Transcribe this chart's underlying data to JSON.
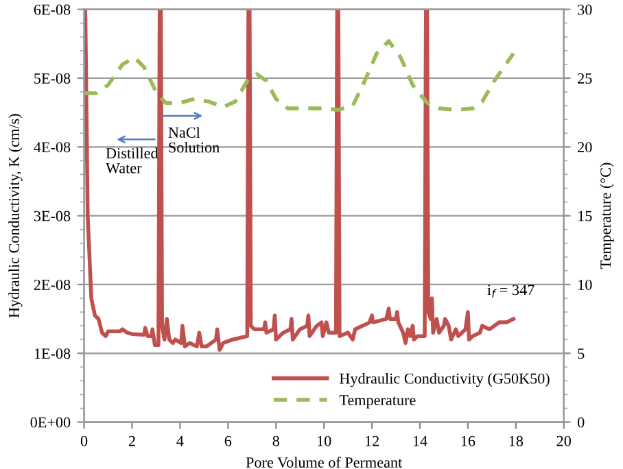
{
  "chart_data": {
    "type": "line",
    "xlabel": "Pore Volume of Permeant",
    "ylabel": "Hydraulic Conductivity, K (cm/s)",
    "y2label": "Temperature (°C)",
    "xlim": [
      0,
      20
    ],
    "xticks": [
      0,
      2,
      4,
      6,
      8,
      10,
      12,
      14,
      16,
      18,
      20
    ],
    "ylim": [
      0,
      6e-08
    ],
    "yticks": [
      {
        "value": 0,
        "label": "0E+00"
      },
      {
        "value": 1e-08,
        "label": "1E-08"
      },
      {
        "value": 2e-08,
        "label": "2E-08"
      },
      {
        "value": 3e-08,
        "label": "3E-08"
      },
      {
        "value": 4e-08,
        "label": "4E-08"
      },
      {
        "value": 5e-08,
        "label": "5E-08"
      },
      {
        "value": 6e-08,
        "label": "6E-08"
      }
    ],
    "y2lim": [
      0,
      30
    ],
    "y2ticks": [
      0,
      5,
      10,
      15,
      20,
      25,
      30
    ],
    "grid": "y",
    "legend": "bottom right",
    "marker": "none",
    "annotations": [
      "Distilled Water",
      "NaCl Solution",
      "i$_{f}$ = 347"
    ],
    "series": [
      {
        "name": "Hydraulic Conductivity (G50K50)",
        "color": "#c0504d",
        "line_style": "solid",
        "x": [
          0,
          0.05,
          0.15,
          0.3,
          0.45,
          0.6,
          0.75,
          0.9,
          1.0,
          1.5,
          1.6,
          1.8,
          2.0,
          2.5,
          2.55,
          2.65,
          2.8,
          2.85,
          2.95,
          3.1,
          3.15,
          3.2,
          3.25,
          3.35,
          3.45,
          3.55,
          3.7,
          3.8,
          4.05,
          4.1,
          4.2,
          4.4,
          4.7,
          4.8,
          4.9,
          5.1,
          5.5,
          5.55,
          5.65,
          5.8,
          6.2,
          6.8,
          6.85,
          6.9,
          6.95,
          7.1,
          7.5,
          7.55,
          7.6,
          7.9,
          7.95,
          8.0,
          8.3,
          8.6,
          8.65,
          8.7,
          9.0,
          9.3,
          9.35,
          9.4,
          9.7,
          9.9,
          9.95,
          10.1,
          10.2,
          10.5,
          10.55,
          10.6,
          10.65,
          11.0,
          11.2,
          11.3,
          11.9,
          12.0,
          12.05,
          12.6,
          12.7,
          12.75,
          13.0,
          13.05,
          13.1,
          13.3,
          13.4,
          13.5,
          13.6,
          13.7,
          13.75,
          13.9,
          14.2,
          14.25,
          14.3,
          14.35,
          14.45,
          14.5,
          14.55,
          14.7,
          14.8,
          15.0,
          15.05,
          15.2,
          15.3,
          15.5,
          15.6,
          15.9,
          16.0,
          16.05,
          16.2,
          16.5,
          16.6,
          16.9,
          17.1,
          17.3,
          17.6,
          17.9
        ],
        "values": [
          6e-08,
          6e-08,
          3e-08,
          1.8e-08,
          1.55e-08,
          1.5e-08,
          1.3e-08,
          1.25e-08,
          1.32e-08,
          1.32e-08,
          1.35e-08,
          1.3e-08,
          1.28e-08,
          1.27e-08,
          1.37e-08,
          1.25e-08,
          1.25e-08,
          1.35e-08,
          1.12e-08,
          1.12e-08,
          6e-08,
          6e-08,
          1.4e-08,
          1.2e-08,
          1.5e-08,
          1.2e-08,
          1.15e-08,
          1.2e-08,
          1.15e-08,
          1.4e-08,
          1.1e-08,
          1.15e-08,
          1.1e-08,
          1.3e-08,
          1.1e-08,
          1.1e-08,
          1.2e-08,
          1.35e-08,
          1.05e-08,
          1.15e-08,
          1.2e-08,
          1.25e-08,
          6e-08,
          6e-08,
          1.4e-08,
          1.35e-08,
          1.35e-08,
          1.45e-08,
          1.3e-08,
          1.35e-08,
          1.55e-08,
          1.2e-08,
          1.3e-08,
          1.35e-08,
          1.5e-08,
          1.2e-08,
          1.35e-08,
          1.4e-08,
          1.55e-08,
          1.25e-08,
          1.4e-08,
          1.45e-08,
          1.25e-08,
          1.45e-08,
          1.3e-08,
          1.3e-08,
          6e-08,
          6e-08,
          1.25e-08,
          1.3e-08,
          1.2e-08,
          1.35e-08,
          1.45e-08,
          1.55e-08,
          1.45e-08,
          1.5e-08,
          1.65e-08,
          1.5e-08,
          1.5e-08,
          1.6e-08,
          1.45e-08,
          1.3e-08,
          1.15e-08,
          1.35e-08,
          1.25e-08,
          1.4e-08,
          1.2e-08,
          1.25e-08,
          1.25e-08,
          6e-08,
          6e-08,
          1.6e-08,
          1.5e-08,
          1.8e-08,
          1.3e-08,
          1.5e-08,
          1.3e-08,
          1.4e-08,
          1.5e-08,
          1.4e-08,
          1.2e-08,
          1.35e-08,
          1.25e-08,
          1.35e-08,
          1.6e-08,
          1.2e-08,
          1.25e-08,
          1.3e-08,
          1.4e-08,
          1.35e-08,
          1.4e-08,
          1.45e-08,
          1.45e-08,
          1.5e-08
        ]
      },
      {
        "name": "Temperature",
        "color": "#9bbb59",
        "axis": "y2",
        "line_style": "dashed",
        "x": [
          0,
          0.5,
          1.0,
          1.6,
          2.1,
          2.5,
          3.0,
          3.4,
          4.0,
          4.6,
          5.2,
          5.8,
          6.3,
          6.8,
          7.2,
          7.6,
          8.0,
          8.5,
          9.2,
          10.0,
          10.6,
          11.2,
          11.7,
          12.2,
          12.7,
          13.2,
          13.7,
          14.3,
          14.8,
          15.5,
          16.2,
          16.6,
          17.1,
          17.5,
          17.9
        ],
        "values": [
          23.9,
          23.9,
          24.5,
          26,
          26.5,
          25.8,
          24,
          23.2,
          23.2,
          23.5,
          23.3,
          22.9,
          23.3,
          24.8,
          25.3,
          24.8,
          23.5,
          22.8,
          22.8,
          22.8,
          22.7,
          23,
          24.8,
          26.8,
          27.7,
          26.5,
          24.5,
          23.2,
          22.8,
          22.7,
          22.8,
          23.3,
          24.8,
          25.8,
          26.8
        ]
      }
    ]
  }
}
